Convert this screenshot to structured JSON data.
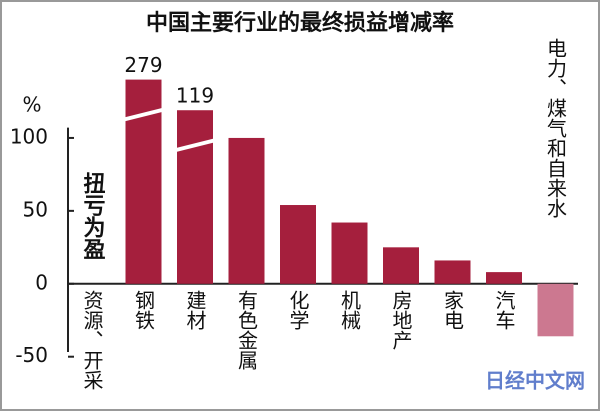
{
  "chart_data": {
    "type": "bar",
    "title": "中国主要行业的最终损益增减率",
    "y_unit": "%",
    "annotation": "扭亏为盈",
    "watermark": "日经中文网",
    "categories": [
      "资源、开采",
      "钢铁",
      "建材",
      "有色金属",
      "化学",
      "机械",
      "房地产",
      "家电",
      "汽车",
      "电力、煤气和自来水"
    ],
    "values": [
      null,
      279,
      119,
      100,
      54,
      42,
      25,
      16,
      8,
      -36
    ],
    "value_labels": [
      null,
      "279",
      "119",
      null,
      null,
      null,
      null,
      null,
      null,
      null
    ],
    "colors": [
      null,
      "#a51f3d",
      "#a51f3d",
      "#a51f3d",
      "#a51f3d",
      "#a51f3d",
      "#a51f3d",
      "#a51f3d",
      "#a51f3d",
      "#cc7890"
    ],
    "ylim": [
      -55,
      140
    ],
    "yticks": [
      -50,
      0,
      50,
      100
    ]
  }
}
